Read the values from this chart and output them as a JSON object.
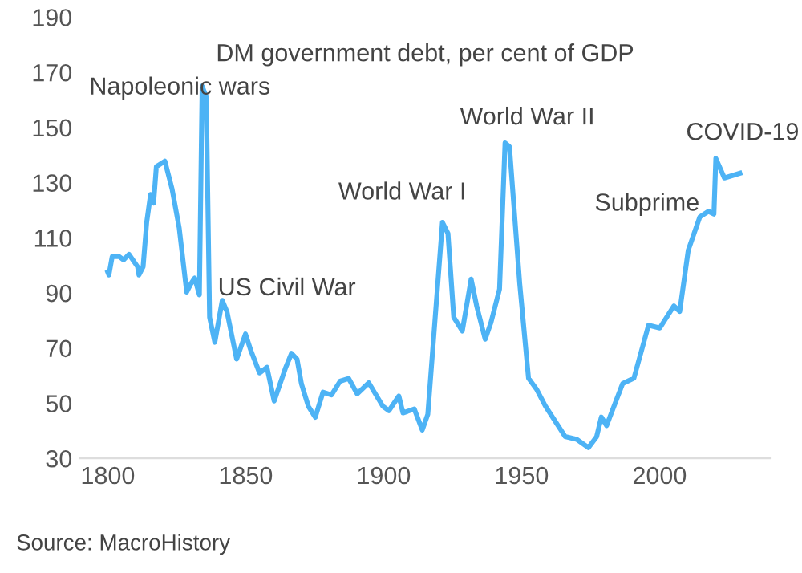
{
  "chart_data": {
    "type": "line",
    "title": "DM government debt, per cent of GDP",
    "x": [
      1800,
      1800.4,
      1801.6,
      1804.1,
      1805.7,
      1807.7,
      1810.8,
      1811.3,
      1812.8,
      1814.1,
      1815.5,
      1816.6,
      1817.6,
      1820.7,
      1823.3,
      1825.9,
      1828.6,
      1830.1,
      1831.5,
      1833.2,
      1834.2,
      1835.7,
      1836.9,
      1838.8,
      1841.5,
      1843.2,
      1846.7,
      1849.9,
      1851.9,
      1855,
      1857.7,
      1860.3,
      1864.5,
      1866.6,
      1868.6,
      1870.2,
      1872.7,
      1875.2,
      1878,
      1881.1,
      1884.2,
      1887.3,
      1890.4,
      1894.6,
      1899.7,
      1901.9,
      1905.5,
      1907,
      1911.1,
      1914,
      1916,
      1921.3,
      1923.3,
      1925.4,
      1928.5,
      1931.7,
      1933.7,
      1936.8,
      1938.9,
      1942,
      1944,
      1945.6,
      1949.3,
      1952.5,
      1955.4,
      1958.6,
      1965.8,
      1970,
      1974.2,
      1977.2,
      1978.9,
      1980.8,
      1986.6,
      1990.7,
      1996,
      2000.1,
      2005.2,
      2007.3,
      2010.4,
      2014.6,
      2017.7,
      2019.7,
      2020.4,
      2023.5,
      2029.1
    ],
    "series": [
      {
        "color": "#4db3f5",
        "values": [
          97.5,
          96.5,
          103.2,
          103.2,
          102,
          104,
          99.5,
          96.5,
          99.5,
          115.6,
          125.7,
          122.6,
          135.8,
          137.8,
          127.7,
          113.5,
          90.3,
          93.3,
          95.4,
          89.3,
          165,
          161,
          81.2,
          72.1,
          87.3,
          83.2,
          66,
          75.1,
          69,
          61,
          63,
          50.8,
          63,
          68.1,
          66,
          57,
          48.9,
          44.9,
          54,
          53,
          58,
          59,
          53.4,
          57.4,
          48.9,
          47.3,
          52.6,
          46.5,
          47.9,
          40.3,
          46,
          115.6,
          111.6,
          81.2,
          76.2,
          95,
          85.3,
          73.2,
          79.3,
          91.4,
          144.4,
          143,
          93.5,
          59.1,
          55.1,
          49,
          37.9,
          36.9,
          33.9,
          37.9,
          45,
          41.9,
          57.1,
          59.1,
          78.3,
          77.3,
          85.3,
          83.3,
          105.5,
          117.6,
          119.6,
          118.6,
          138.8,
          131.7,
          133.4
        ]
      }
    ],
    "xlim": [
      1790,
      2040
    ],
    "xticks": [
      1800,
      1850,
      1900,
      1950,
      2000
    ],
    "ylim": [
      30,
      190
    ],
    "yticks": [
      30,
      50,
      70,
      90,
      110,
      130,
      150,
      170,
      190
    ],
    "grid": false,
    "legend": false,
    "marker": "none",
    "line_style": "solid",
    "annotations": [
      {
        "text": "Napoleonic wars",
        "x": 1834.2,
        "y": 165
      },
      {
        "text": "US Civil War",
        "x": 1841.5,
        "y": 87.3
      },
      {
        "text": "World War I",
        "x": 1921.3,
        "y": 115.6
      },
      {
        "text": "World War II",
        "x": 1944,
        "y": 144.4
      },
      {
        "text": "Subprime",
        "x": 2017.7,
        "y": 119.6
      },
      {
        "text": "COVID-19",
        "x": 2020.4,
        "y": 138.8
      },
      "Source: MacroHistory"
    ]
  }
}
